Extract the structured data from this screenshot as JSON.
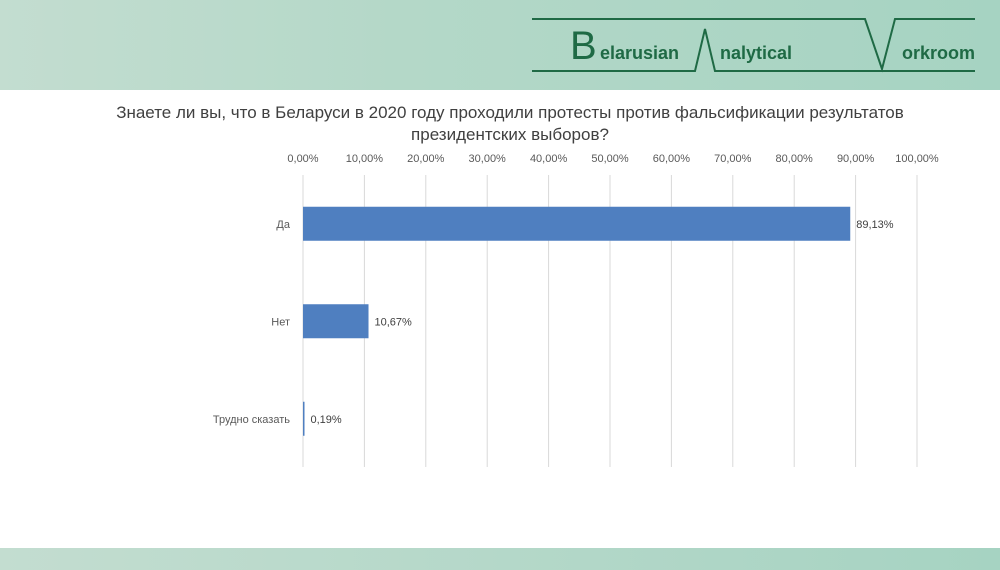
{
  "logo_text": "Belarusian Analytical Workroom",
  "chart_data": {
    "type": "bar",
    "orientation": "horizontal",
    "title": "Знаете ли вы, что в Беларуси в 2020 году проходили протесты против фальсификации результатов президентских выборов?",
    "categories": [
      "Да",
      "Нет",
      "Трудно сказать"
    ],
    "values": [
      89.13,
      10.67,
      0.19
    ],
    "data_labels": [
      "89,13%",
      "10,67%",
      "0,19%"
    ],
    "xlim": [
      0,
      100
    ],
    "x_ticks": [
      "0,00%",
      "10,00%",
      "20,00%",
      "30,00%",
      "40,00%",
      "50,00%",
      "60,00%",
      "70,00%",
      "80,00%",
      "90,00%",
      "100,00%"
    ],
    "x_axis_position": "top",
    "grid": true,
    "bar_color": "#4f7fc0"
  }
}
